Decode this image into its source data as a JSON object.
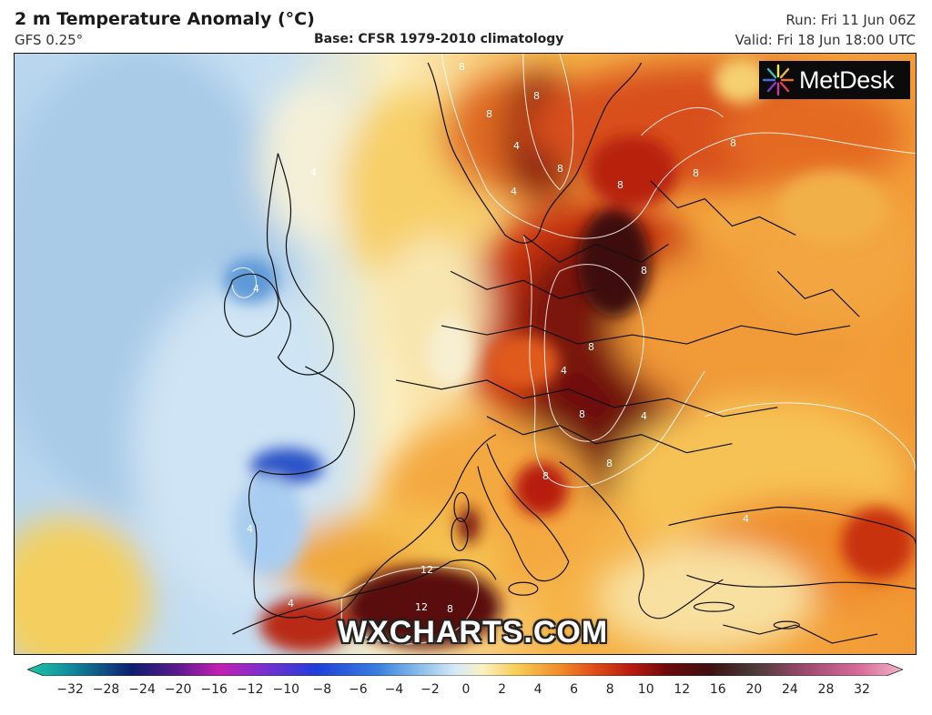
{
  "header": {
    "title": "2 m Temperature Anomaly (°C)",
    "model": "GFS 0.25°",
    "base": "Base: CFSR 1979-2010 climatology",
    "run": "Run: Fri 11 Jun 06Z",
    "valid": "Valid: Fri 18 Jun 18:00 UTC"
  },
  "logo": {
    "text": "MetDesk"
  },
  "watermark": "WXCHARTS.COM",
  "map": {
    "contour_labels": [
      "8",
      "8",
      "8",
      "8",
      "4",
      "4",
      "8",
      "8",
      "4",
      "8",
      "8",
      "4",
      "8",
      "4",
      "8",
      "8",
      "8",
      "4",
      "4",
      "4",
      "12",
      "12",
      "8",
      "4"
    ]
  },
  "colorbar": {
    "ticks": [
      "−32",
      "−28",
      "−24",
      "−20",
      "−16",
      "−12",
      "−10",
      "−8",
      "−6",
      "−4",
      "−2",
      "0",
      "2",
      "4",
      "6",
      "8",
      "10",
      "12",
      "16",
      "20",
      "24",
      "28",
      "32"
    ],
    "colors": {
      "cyan": "#1fc5a8",
      "teal": "#108a9c",
      "navy": "#0d1e6e",
      "purple": "#5a1a8c",
      "magenta": "#c31fb3",
      "violet": "#7a2fd0",
      "blue": "#1f3fd8",
      "mid_blue": "#3a7fe0",
      "light_blue": "#8cc0ea",
      "pale_blue": "#d8eaf6",
      "pale_yellow": "#fbf0c0",
      "yellow": "#f8cc55",
      "orange": "#f08a2a",
      "red_orange": "#dd4a16",
      "red": "#b81a10",
      "dark_red": "#6e0a0a",
      "brown": "#3e1010",
      "dark_grey": "#4a3a3a",
      "mauve": "#a04a70",
      "rose": "#d66c9a",
      "pink": "#f4b4c8"
    }
  }
}
